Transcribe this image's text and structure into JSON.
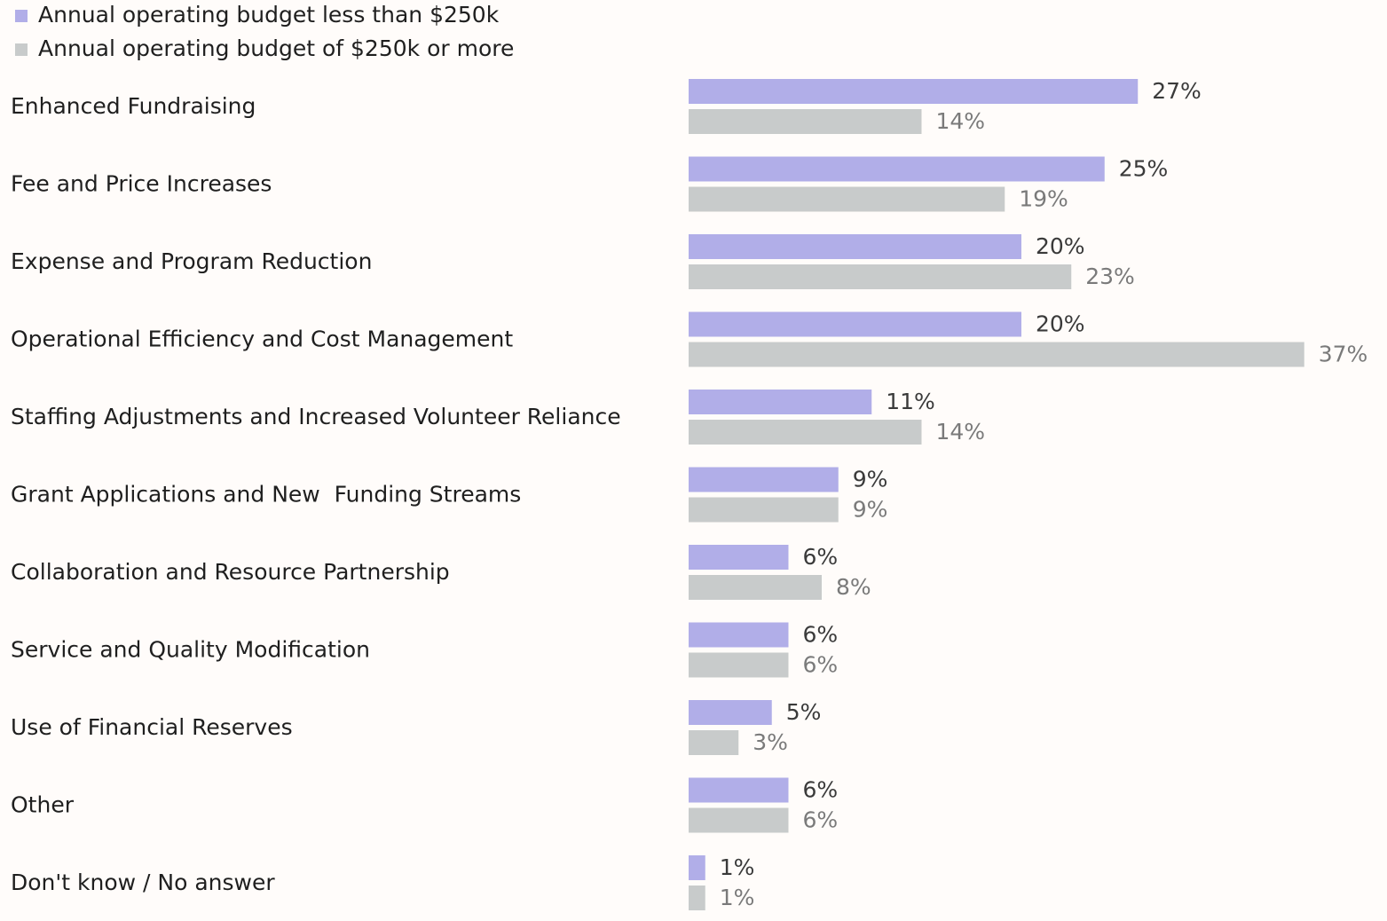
{
  "chart_data": {
    "type": "bar",
    "orientation": "horizontal",
    "categories": [
      "Enhanced Fundraising",
      "Fee and Price Increases",
      "Expense and Program Reduction",
      "Operational Efficiency and Cost Management",
      "Staffing Adjustments and Increased Volunteer Reliance",
      "Grant Applications and New  Funding Streams",
      "Collaboration and Resource Partnership",
      "Service and Quality Modification",
      "Use of Financial Reserves",
      "Other",
      "Don't know / No answer"
    ],
    "series": [
      {
        "name": "Annual operating budget less than $250k",
        "color": "#b1aee8",
        "values": [
          27,
          25,
          20,
          20,
          11,
          9,
          6,
          6,
          5,
          6,
          1
        ],
        "value_labels": [
          "27%",
          "25%",
          "20%",
          "20%",
          "11%",
          "9%",
          "6%",
          "6%",
          "5%",
          "6%",
          "1%"
        ]
      },
      {
        "name": "Annual operating budget of $250k or more",
        "color": "#c8cbcb",
        "values": [
          14,
          19,
          23,
          37,
          14,
          9,
          8,
          6,
          3,
          6,
          1
        ],
        "value_labels": [
          "14%",
          "19%",
          "23%",
          "37%",
          "14%",
          "9%",
          "8%",
          "6%",
          "3%",
          "6%",
          "1%"
        ]
      }
    ]
  }
}
